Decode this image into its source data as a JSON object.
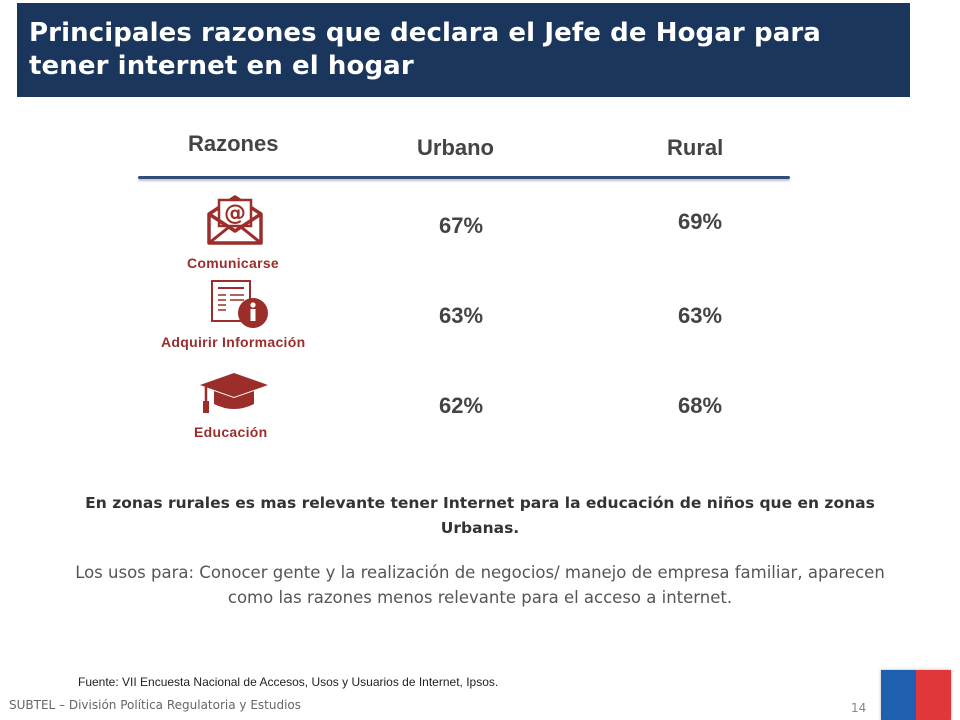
{
  "header": {
    "title_line1": "Principales razones que declara el Jefe de Hogar para",
    "title_line2": "tener internet en el hogar"
  },
  "table": {
    "columns": {
      "reasons": "Razones",
      "urban": "Urbano",
      "rural": "Rural"
    },
    "rows": [
      {
        "label": "Comunicarse",
        "icon": "mail-icon",
        "urban": "67%",
        "rural": "69%"
      },
      {
        "label": "Adquirir Información",
        "icon": "info-document-icon",
        "urban": "63%",
        "rural": "63%"
      },
      {
        "label": "Educación",
        "icon": "graduation-cap-icon",
        "urban": "62%",
        "rural": "68%"
      }
    ]
  },
  "notes": {
    "bold": "En zonas rurales es mas relevante tener Internet para la educación de niños que en zonas Urbanas.",
    "regular": "Los usos para: Conocer gente y la realización de negocios/ manejo de empresa familiar, aparecen como las razones menos relevante para el acceso a internet."
  },
  "source": "Fuente: VII Encuesta Nacional de Accesos, Usos y Usuarios de Internet, Ipsos.",
  "footer": {
    "org": "SUBTEL – División Política Regulatoria y Estudios",
    "page": "14"
  },
  "colors": {
    "banner": "#1b365d",
    "icon_red": "#9b2d2a",
    "flag_blue": "#1f5fb0",
    "flag_red": "#e0373a"
  }
}
